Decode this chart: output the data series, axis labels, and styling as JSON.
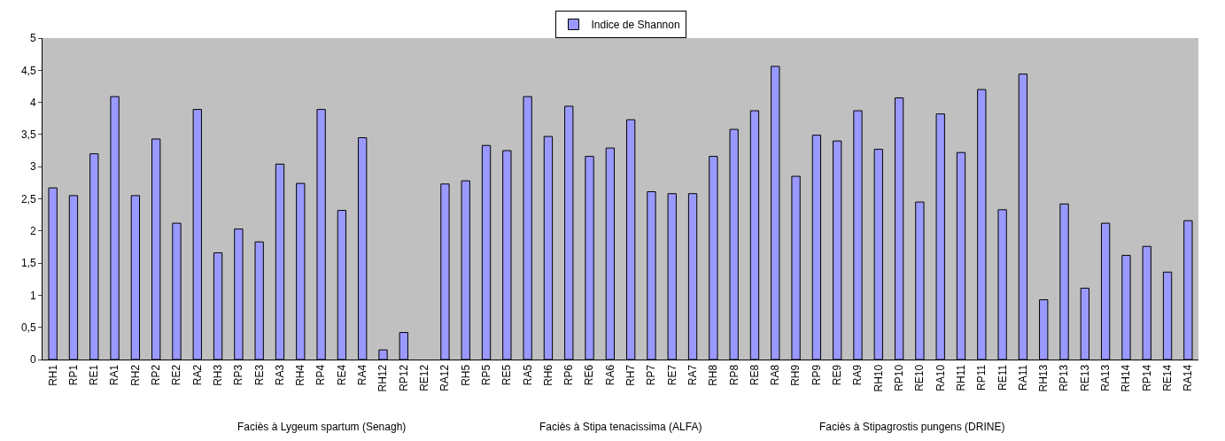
{
  "chart_data": {
    "type": "bar",
    "categories": [
      "RH1",
      "RP1",
      "RE1",
      "RA1",
      "RH2",
      "RP2",
      "RE2",
      "RA2",
      "RH3",
      "RP3",
      "RE3",
      "RA3",
      "RH4",
      "RP4",
      "RE4",
      "RA4",
      "RH12",
      "RP12",
      "RE12",
      "RA12",
      "RH5",
      "RP5",
      "RE5",
      "RA5",
      "RH6",
      "RP6",
      "RE6",
      "RA6",
      "RH7",
      "RP7",
      "RE7",
      "RA7",
      "RH8",
      "RP8",
      "RE8",
      "RA8",
      "RH9",
      "RP9",
      "RE9",
      "RA9",
      "RH10",
      "RP10",
      "RE10",
      "RA10",
      "RH11",
      "RP11",
      "RE11",
      "RA11",
      "RH13",
      "RP13",
      "RE13",
      "RA13",
      "RH14",
      "RP14",
      "RE14",
      "RA14"
    ],
    "series": [
      {
        "name": "Indice de Shannon",
        "color": "#9999ff",
        "values": [
          2.67,
          2.55,
          3.2,
          4.09,
          2.55,
          3.43,
          2.12,
          3.89,
          1.66,
          2.03,
          1.83,
          3.04,
          2.74,
          3.89,
          2.32,
          3.45,
          0.15,
          0.42,
          null,
          2.73,
          2.78,
          3.33,
          3.25,
          4.09,
          3.47,
          3.94,
          3.16,
          3.29,
          3.73,
          2.61,
          2.58,
          2.58,
          3.16,
          3.58,
          3.87,
          4.56,
          2.85,
          3.49,
          3.4,
          3.87,
          3.27,
          4.07,
          2.45,
          3.82,
          3.22,
          4.2,
          2.33,
          4.44,
          0.93,
          2.42,
          1.11,
          2.12,
          1.62,
          1.76,
          1.36,
          2.16
        ]
      }
    ],
    "ylim": [
      0,
      5
    ],
    "yticks": [
      0,
      {
        "value": 0.5,
        "label": "0,5"
      },
      1,
      {
        "value": 1.5,
        "label": "1,5"
      },
      2,
      {
        "value": 2.5,
        "label": "2,5"
      },
      3,
      {
        "value": 3.5,
        "label": "3,5"
      },
      4,
      {
        "value": 4.5,
        "label": "4,5"
      },
      5
    ],
    "annotations": [
      "Faciès à Lygeum spartum (Senagh)",
      "Faciès à Stipa tenacissima (ALFA)",
      "Faciès à Stipagrostis pungens (DRINE)"
    ],
    "legend": "top",
    "grid": false
  }
}
